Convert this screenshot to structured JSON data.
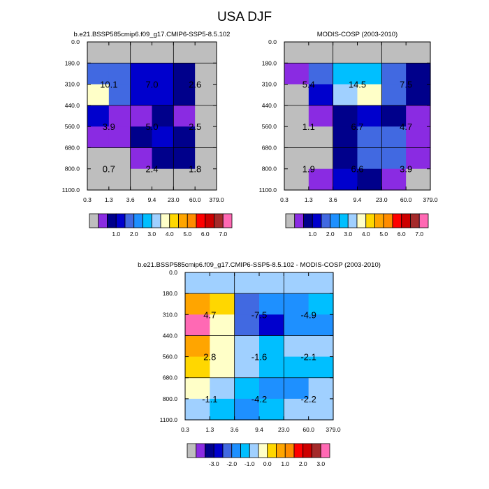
{
  "figure": {
    "title": "USA DJF"
  },
  "chart_data": [
    {
      "type": "heatmap",
      "title": "b.e21.BSSP585cmip6.f09_g17.CMIP6-SSP5-8.5.102",
      "x_ticks": [
        "0.3",
        "1.3",
        "3.6",
        "9.4",
        "23.0",
        "60.0",
        "379.0"
      ],
      "y_ticks": [
        "0.0",
        "180.0",
        "310.0",
        "440.0",
        "560.0",
        "680.0",
        "800.0",
        "1100.0"
      ],
      "cells": [
        [
          "#bebebe",
          "#bebebe",
          "#bebebe",
          "#bebebe",
          "#bebebe",
          "#bebebe"
        ],
        [
          "#4169e1",
          "#4169e1",
          "#0000cd",
          "#0000cd",
          "#00008b",
          "#bebebe"
        ],
        [
          "#ffffc8",
          "#4169e1",
          "#0000cd",
          "#0000cd",
          "#00008b",
          "#bebebe"
        ],
        [
          "#0000cd",
          "#8a2be2",
          "#8a2be2",
          "#00008b",
          "#8a2be2",
          "#bebebe"
        ],
        [
          "#8a2be2",
          "#8a2be2",
          "#00008b",
          "#0000cd",
          "#00008b",
          "#bebebe"
        ],
        [
          "#bebebe",
          "#bebebe",
          "#8a2be2",
          "#00008b",
          "#00008b",
          "#bebebe"
        ],
        [
          "#bebebe",
          "#bebebe",
          "#bebebe",
          "#bebebe",
          "#bebebe",
          "#bebebe"
        ]
      ],
      "labels": [
        {
          "col": 0,
          "row": 1,
          "text": "10.1"
        },
        {
          "col": 1,
          "row": 1,
          "text": "7.0"
        },
        {
          "col": 2,
          "row": 1,
          "text": "2.6"
        },
        {
          "col": 0,
          "row": 2,
          "text": "3.9"
        },
        {
          "col": 1,
          "row": 2,
          "text": "5.0"
        },
        {
          "col": 2,
          "row": 2,
          "text": "2.5"
        },
        {
          "col": 0,
          "row": 3,
          "text": "0.7"
        },
        {
          "col": 1,
          "row": 3,
          "text": "2.4"
        },
        {
          "col": 2,
          "row": 3,
          "text": "1.8"
        }
      ],
      "colorbar": {
        "colors": [
          "#bebebe",
          "#8a2be2",
          "#00008b",
          "#0000cd",
          "#4169e1",
          "#1e90ff",
          "#00bfff",
          "#a0d0ff",
          "#ffffc8",
          "#ffd700",
          "#ffa500",
          "#ff8c00",
          "#ff0000",
          "#cd0000",
          "#a52a2a",
          "#ff69b4"
        ],
        "labels": [
          "1.0",
          "2.0",
          "3.0",
          "4.0",
          "5.0",
          "6.0",
          "7.0"
        ]
      }
    },
    {
      "type": "heatmap",
      "title": "MODIS-COSP (2003-2010)",
      "x_ticks": [
        "0.3",
        "1.3",
        "3.6",
        "9.4",
        "23.0",
        "60.0",
        "379.0"
      ],
      "y_ticks": [
        "0.0",
        "180.0",
        "310.0",
        "440.0",
        "560.0",
        "680.0",
        "800.0",
        "1100.0"
      ],
      "cells": [
        [
          "#bebebe",
          "#bebebe",
          "#bebebe",
          "#bebebe",
          "#bebebe",
          "#bebebe"
        ],
        [
          "#8a2be2",
          "#4169e1",
          "#00bfff",
          "#00bfff",
          "#4169e1",
          "#00008b"
        ],
        [
          "#bebebe",
          "#0000cd",
          "#a0d0ff",
          "#ffffc8",
          "#4169e1",
          "#00008b"
        ],
        [
          "#bebebe",
          "#8a2be2",
          "#00008b",
          "#0000cd",
          "#00008b",
          "#8a2be2"
        ],
        [
          "#bebebe",
          "#bebebe",
          "#00008b",
          "#4169e1",
          "#4169e1",
          "#8a2be2"
        ],
        [
          "#bebebe",
          "#bebebe",
          "#00008b",
          "#4169e1",
          "#4169e1",
          "#8a2be2"
        ],
        [
          "#bebebe",
          "#8a2be2",
          "#0000cd",
          "#00008b",
          "#8a2be2",
          "#bebebe"
        ]
      ],
      "labels": [
        {
          "col": 0,
          "row": 1,
          "text": "5.4"
        },
        {
          "col": 1,
          "row": 1,
          "text": "14.5"
        },
        {
          "col": 2,
          "row": 1,
          "text": "7.5"
        },
        {
          "col": 0,
          "row": 2,
          "text": "1.1"
        },
        {
          "col": 1,
          "row": 2,
          "text": "6.7"
        },
        {
          "col": 2,
          "row": 2,
          "text": "4.7"
        },
        {
          "col": 0,
          "row": 3,
          "text": "1.9"
        },
        {
          "col": 1,
          "row": 3,
          "text": "6.6"
        },
        {
          "col": 2,
          "row": 3,
          "text": "3.9"
        }
      ],
      "colorbar": {
        "colors": [
          "#bebebe",
          "#8a2be2",
          "#00008b",
          "#0000cd",
          "#4169e1",
          "#1e90ff",
          "#00bfff",
          "#a0d0ff",
          "#ffffc8",
          "#ffd700",
          "#ffa500",
          "#ff8c00",
          "#ff0000",
          "#cd0000",
          "#a52a2a",
          "#ff69b4"
        ],
        "labels": [
          "1.0",
          "2.0",
          "3.0",
          "4.0",
          "5.0",
          "6.0",
          "7.0"
        ]
      }
    },
    {
      "type": "heatmap",
      "title": "b.e21.BSSP585cmip6.f09_g17.CMIP6-SSP5-8.5.102 - MODIS-COSP (2003-2010)",
      "x_ticks": [
        "0.3",
        "1.3",
        "3.6",
        "9.4",
        "23.0",
        "60.0",
        "379.0"
      ],
      "y_ticks": [
        "0.0",
        "180.0",
        "310.0",
        "440.0",
        "560.0",
        "680.0",
        "800.0",
        "1100.0"
      ],
      "cells": [
        [
          "#a0d0ff",
          "#a0d0ff",
          "#a0d0ff",
          "#a0d0ff",
          "#a0d0ff",
          "#a0d0ff"
        ],
        [
          "#ffa500",
          "#ffd700",
          "#4169e1",
          "#1e90ff",
          "#1e90ff",
          "#00bfff"
        ],
        [
          "#ff69b4",
          "#ffffc8",
          "#4169e1",
          "#0000cd",
          "#1e90ff",
          "#1e90ff"
        ],
        [
          "#ffa500",
          "#ffffc8",
          "#a0d0ff",
          "#00bfff",
          "#a0d0ff",
          "#a0d0ff"
        ],
        [
          "#ffd700",
          "#ffffc8",
          "#a0d0ff",
          "#00bfff",
          "#00bfff",
          "#00bfff"
        ],
        [
          "#ffffc8",
          "#a0d0ff",
          "#00bfff",
          "#1e90ff",
          "#1e90ff",
          "#a0d0ff"
        ],
        [
          "#a0d0ff",
          "#00bfff",
          "#1e90ff",
          "#00bfff",
          "#a0d0ff",
          "#a0d0ff"
        ]
      ],
      "labels": [
        {
          "col": 0,
          "row": 1,
          "text": "4.7"
        },
        {
          "col": 1,
          "row": 1,
          "text": "-7.5"
        },
        {
          "col": 2,
          "row": 1,
          "text": "-4.9"
        },
        {
          "col": 0,
          "row": 2,
          "text": "2.8"
        },
        {
          "col": 1,
          "row": 2,
          "text": "-1.6"
        },
        {
          "col": 2,
          "row": 2,
          "text": "-2.1"
        },
        {
          "col": 0,
          "row": 3,
          "text": "-1.1"
        },
        {
          "col": 1,
          "row": 3,
          "text": "-4.2"
        },
        {
          "col": 2,
          "row": 3,
          "text": "-2.2"
        }
      ],
      "colorbar": {
        "colors": [
          "#bebebe",
          "#8a2be2",
          "#00008b",
          "#0000cd",
          "#4169e1",
          "#1e90ff",
          "#00bfff",
          "#a0d0ff",
          "#ffffc8",
          "#ffd700",
          "#ffa500",
          "#ff8c00",
          "#ff0000",
          "#cd0000",
          "#a52a2a",
          "#ff69b4"
        ],
        "labels": [
          "-3.0",
          "-2.0",
          "-1.0",
          "0.0",
          "1.0",
          "2.0",
          "3.0"
        ]
      }
    }
  ]
}
